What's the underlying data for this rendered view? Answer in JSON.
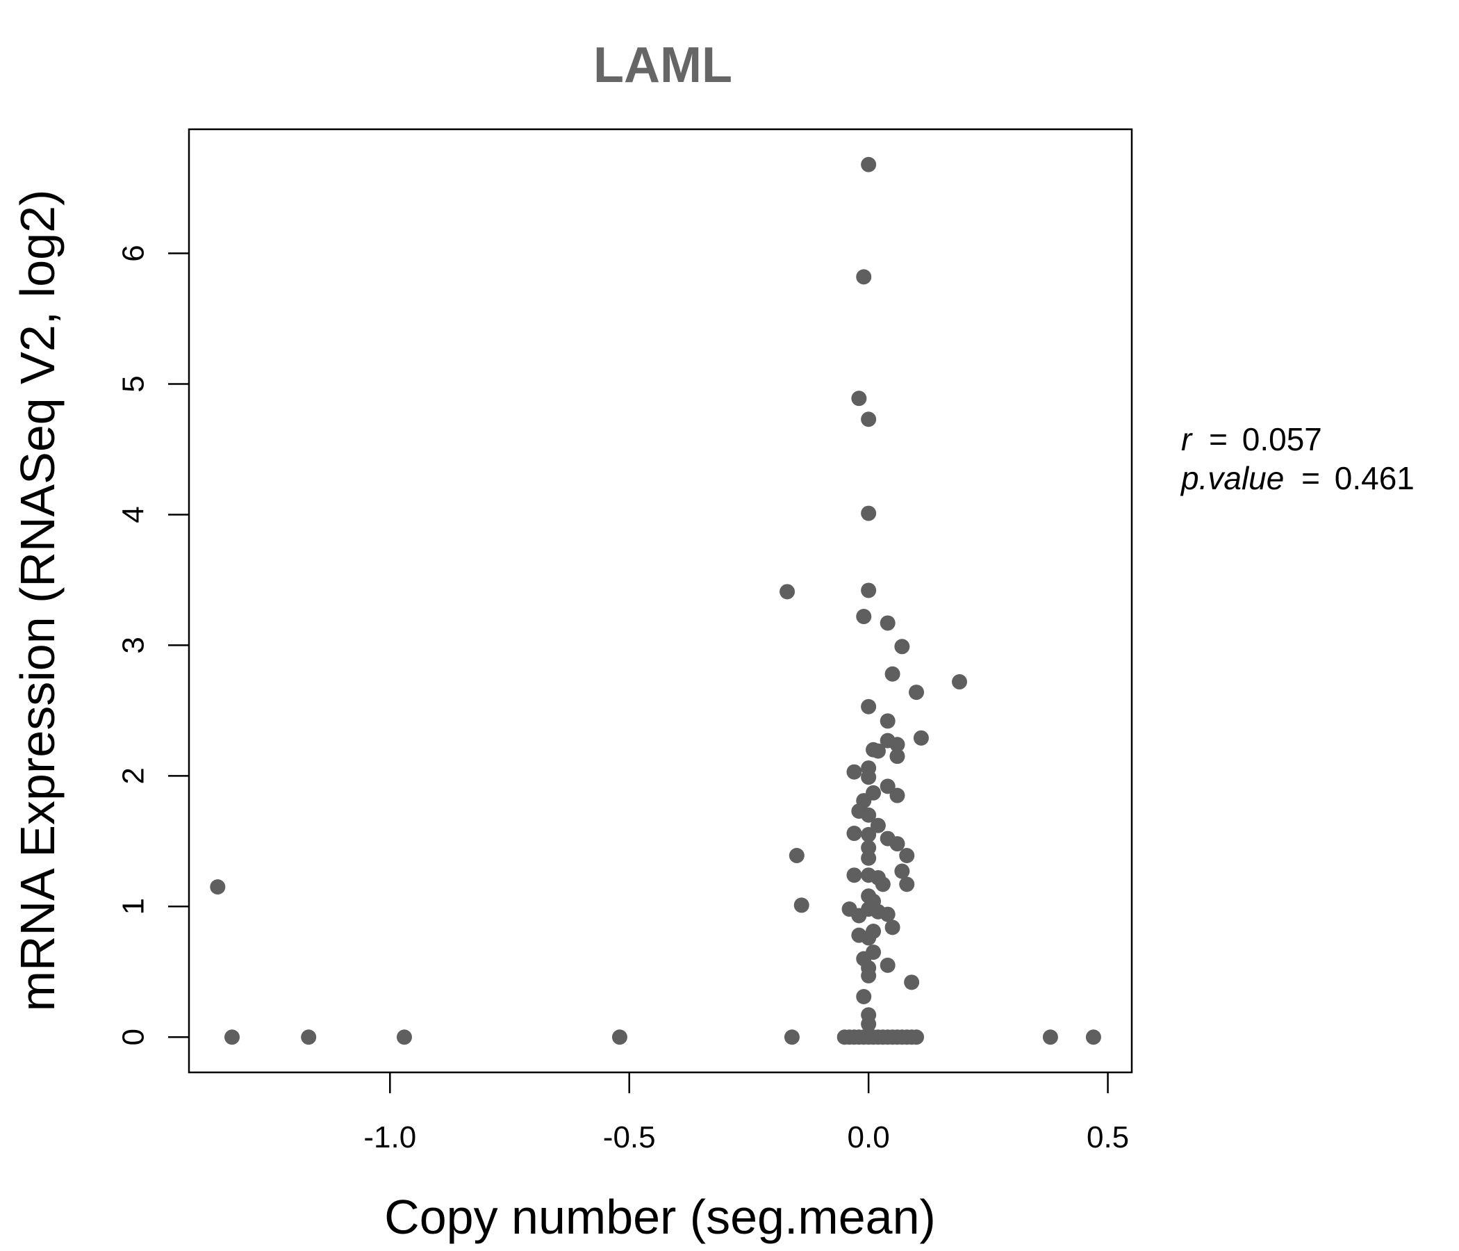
{
  "chart_data": {
    "type": "scatter",
    "title": "LAML",
    "xlabel": "Copy number (seg.mean)",
    "ylabel": "mRNA Expression (RNASeq V2, log2)",
    "xlim": [
      -1.42,
      0.55
    ],
    "ylim": [
      -0.27,
      6.95
    ],
    "xticks": [
      -1.0,
      -0.5,
      0.0,
      0.5
    ],
    "xtick_labels": [
      "-1.0",
      "-0.5",
      "0.0",
      "0.5"
    ],
    "yticks": [
      0,
      1,
      2,
      3,
      4,
      5,
      6
    ],
    "ytick_labels": [
      "0",
      "1",
      "2",
      "3",
      "4",
      "5",
      "6"
    ],
    "grid": false,
    "marker_color": "#5f5f5f",
    "stats": {
      "r_label": "r",
      "r_value": "0.057",
      "p_label": "p.value",
      "p_value": "0.461"
    },
    "points": [
      {
        "x": -1.36,
        "y": 1.15
      },
      {
        "x": -1.33,
        "y": 0.0
      },
      {
        "x": -1.17,
        "y": 0.0
      },
      {
        "x": -0.97,
        "y": 0.0
      },
      {
        "x": -0.52,
        "y": 0.0
      },
      {
        "x": -0.16,
        "y": 0.0
      },
      {
        "x": 0.38,
        "y": 0.0
      },
      {
        "x": 0.47,
        "y": 0.0
      },
      {
        "x": -0.05,
        "y": 0.0
      },
      {
        "x": -0.04,
        "y": 0.0
      },
      {
        "x": -0.03,
        "y": 0.0
      },
      {
        "x": -0.02,
        "y": 0.0
      },
      {
        "x": -0.01,
        "y": 0.0
      },
      {
        "x": 0.0,
        "y": 0.0
      },
      {
        "x": 0.01,
        "y": 0.0
      },
      {
        "x": 0.02,
        "y": 0.0
      },
      {
        "x": 0.03,
        "y": 0.0
      },
      {
        "x": 0.04,
        "y": 0.0
      },
      {
        "x": 0.05,
        "y": 0.0
      },
      {
        "x": 0.06,
        "y": 0.0
      },
      {
        "x": 0.07,
        "y": 0.0
      },
      {
        "x": 0.08,
        "y": 0.0
      },
      {
        "x": 0.09,
        "y": 0.0
      },
      {
        "x": 0.1,
        "y": 0.0
      },
      {
        "x": 0.0,
        "y": 6.68
      },
      {
        "x": -0.01,
        "y": 5.82
      },
      {
        "x": -0.02,
        "y": 4.89
      },
      {
        "x": 0.0,
        "y": 4.73
      },
      {
        "x": 0.0,
        "y": 4.01
      },
      {
        "x": -0.17,
        "y": 3.41
      },
      {
        "x": 0.0,
        "y": 3.42
      },
      {
        "x": -0.01,
        "y": 3.22
      },
      {
        "x": 0.04,
        "y": 3.17
      },
      {
        "x": 0.07,
        "y": 2.99
      },
      {
        "x": 0.05,
        "y": 2.78
      },
      {
        "x": 0.19,
        "y": 2.72
      },
      {
        "x": 0.1,
        "y": 2.64
      },
      {
        "x": 0.0,
        "y": 2.53
      },
      {
        "x": 0.04,
        "y": 2.42
      },
      {
        "x": 0.11,
        "y": 2.29
      },
      {
        "x": 0.04,
        "y": 2.27
      },
      {
        "x": 0.06,
        "y": 2.24
      },
      {
        "x": 0.01,
        "y": 2.2
      },
      {
        "x": 0.02,
        "y": 2.19
      },
      {
        "x": 0.06,
        "y": 2.15
      },
      {
        "x": -0.03,
        "y": 2.03
      },
      {
        "x": 0.0,
        "y": 2.06
      },
      {
        "x": 0.0,
        "y": 1.99
      },
      {
        "x": 0.04,
        "y": 1.92
      },
      {
        "x": 0.01,
        "y": 1.87
      },
      {
        "x": 0.06,
        "y": 1.85
      },
      {
        "x": -0.01,
        "y": 1.81
      },
      {
        "x": -0.02,
        "y": 1.73
      },
      {
        "x": 0.0,
        "y": 1.7
      },
      {
        "x": 0.02,
        "y": 1.62
      },
      {
        "x": -0.03,
        "y": 1.56
      },
      {
        "x": 0.0,
        "y": 1.55
      },
      {
        "x": 0.04,
        "y": 1.52
      },
      {
        "x": 0.06,
        "y": 1.48
      },
      {
        "x": 0.0,
        "y": 1.45
      },
      {
        "x": -0.15,
        "y": 1.39
      },
      {
        "x": 0.08,
        "y": 1.39
      },
      {
        "x": 0.0,
        "y": 1.37
      },
      {
        "x": 0.07,
        "y": 1.27
      },
      {
        "x": -0.03,
        "y": 1.24
      },
      {
        "x": 0.0,
        "y": 1.24
      },
      {
        "x": 0.02,
        "y": 1.22
      },
      {
        "x": 0.03,
        "y": 1.17
      },
      {
        "x": 0.08,
        "y": 1.17
      },
      {
        "x": -0.14,
        "y": 1.01
      },
      {
        "x": 0.0,
        "y": 1.08
      },
      {
        "x": 0.01,
        "y": 1.04
      },
      {
        "x": -0.04,
        "y": 0.98
      },
      {
        "x": 0.0,
        "y": 0.98
      },
      {
        "x": 0.02,
        "y": 0.96
      },
      {
        "x": -0.02,
        "y": 0.93
      },
      {
        "x": 0.04,
        "y": 0.94
      },
      {
        "x": 0.05,
        "y": 0.84
      },
      {
        "x": 0.01,
        "y": 0.81
      },
      {
        "x": -0.02,
        "y": 0.78
      },
      {
        "x": 0.0,
        "y": 0.76
      },
      {
        "x": 0.01,
        "y": 0.65
      },
      {
        "x": -0.01,
        "y": 0.6
      },
      {
        "x": 0.04,
        "y": 0.55
      },
      {
        "x": 0.0,
        "y": 0.53
      },
      {
        "x": 0.0,
        "y": 0.47
      },
      {
        "x": 0.09,
        "y": 0.42
      },
      {
        "x": -0.01,
        "y": 0.31
      },
      {
        "x": 0.0,
        "y": 0.17
      },
      {
        "x": 0.0,
        "y": 0.1
      }
    ]
  }
}
